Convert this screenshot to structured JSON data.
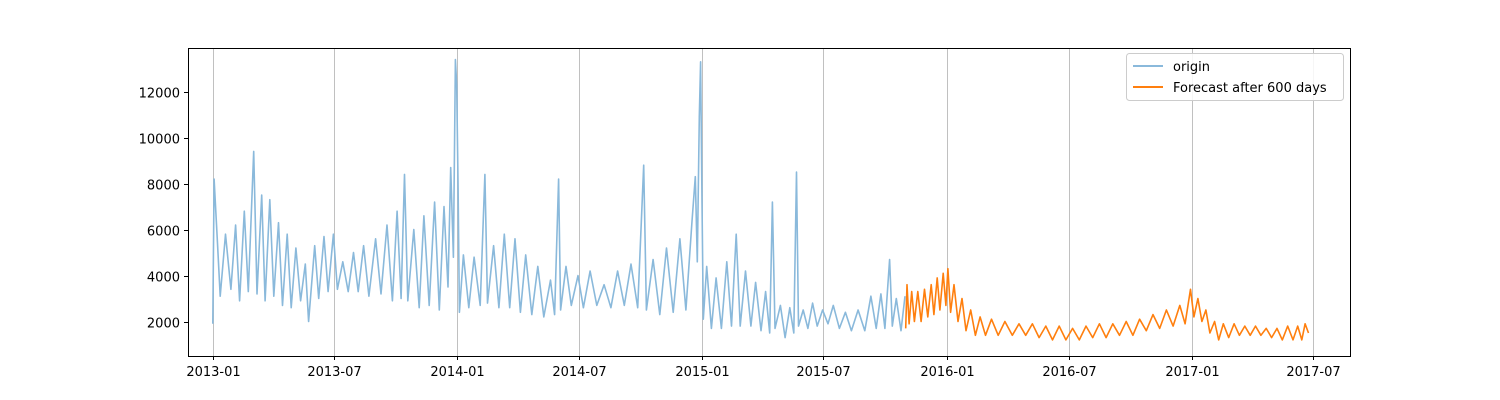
{
  "chart_data": {
    "type": "line",
    "title": "",
    "xlabel": "",
    "ylabel": "",
    "x_axis_type": "date",
    "xlim": [
      "2012-11-25",
      "2017-08-25"
    ],
    "ylim": [
      500,
      13900
    ],
    "x_ticks": [
      "2013-01",
      "2013-07",
      "2014-01",
      "2014-07",
      "2015-01",
      "2015-07",
      "2016-01",
      "2016-07",
      "2017-01",
      "2017-07"
    ],
    "y_ticks": [
      2000,
      4000,
      6000,
      8000,
      10000,
      12000
    ],
    "x_grid": true,
    "y_grid": false,
    "legend_position": "top-right",
    "colors": {
      "origin": "#8ab9db",
      "forecast": "#ff7f0e"
    },
    "series": [
      {
        "name": "origin",
        "points": [
          [
            "2013-01-01",
            1900
          ],
          [
            "2013-01-03",
            8200
          ],
          [
            "2013-01-08",
            5400
          ],
          [
            "2013-01-12",
            3100
          ],
          [
            "2013-01-20",
            5800
          ],
          [
            "2013-01-28",
            3400
          ],
          [
            "2013-02-04",
            6200
          ],
          [
            "2013-02-10",
            2900
          ],
          [
            "2013-02-17",
            6800
          ],
          [
            "2013-02-23",
            3300
          ],
          [
            "2013-03-03",
            9400
          ],
          [
            "2013-03-08",
            3200
          ],
          [
            "2013-03-15",
            7500
          ],
          [
            "2013-03-20",
            2900
          ],
          [
            "2013-03-27",
            7300
          ],
          [
            "2013-04-02",
            3100
          ],
          [
            "2013-04-09",
            6300
          ],
          [
            "2013-04-15",
            2700
          ],
          [
            "2013-04-22",
            5800
          ],
          [
            "2013-04-28",
            2600
          ],
          [
            "2013-05-05",
            5200
          ],
          [
            "2013-05-12",
            2900
          ],
          [
            "2013-05-19",
            4500
          ],
          [
            "2013-05-24",
            2000
          ],
          [
            "2013-06-02",
            5300
          ],
          [
            "2013-06-08",
            3000
          ],
          [
            "2013-06-16",
            5700
          ],
          [
            "2013-06-22",
            3300
          ],
          [
            "2013-06-30",
            5800
          ],
          [
            "2013-07-06",
            3400
          ],
          [
            "2013-07-14",
            4600
          ],
          [
            "2013-07-22",
            3300
          ],
          [
            "2013-07-30",
            5000
          ],
          [
            "2013-08-06",
            3300
          ],
          [
            "2013-08-14",
            5300
          ],
          [
            "2013-08-22",
            3100
          ],
          [
            "2013-09-01",
            5600
          ],
          [
            "2013-09-09",
            3200
          ],
          [
            "2013-09-18",
            6200
          ],
          [
            "2013-09-26",
            2900
          ],
          [
            "2013-10-03",
            6800
          ],
          [
            "2013-10-09",
            3000
          ],
          [
            "2013-10-14",
            8400
          ],
          [
            "2013-10-19",
            2900
          ],
          [
            "2013-10-28",
            6000
          ],
          [
            "2013-11-05",
            2600
          ],
          [
            "2013-11-12",
            6600
          ],
          [
            "2013-11-20",
            2700
          ],
          [
            "2013-11-28",
            7200
          ],
          [
            "2013-12-05",
            2500
          ],
          [
            "2013-12-12",
            7000
          ],
          [
            "2013-12-18",
            3500
          ],
          [
            "2013-12-22",
            8700
          ],
          [
            "2013-12-26",
            4800
          ],
          [
            "2013-12-29",
            13400
          ],
          [
            "2013-12-31",
            12300
          ],
          [
            "2014-01-02",
            7800
          ],
          [
            "2014-01-04",
            2400
          ],
          [
            "2014-01-10",
            4900
          ],
          [
            "2014-01-18",
            2600
          ],
          [
            "2014-01-26",
            4800
          ],
          [
            "2014-02-04",
            2700
          ],
          [
            "2014-02-11",
            8400
          ],
          [
            "2014-02-15",
            2800
          ],
          [
            "2014-02-24",
            5300
          ],
          [
            "2014-03-04",
            2600
          ],
          [
            "2014-03-12",
            5800
          ],
          [
            "2014-03-20",
            2600
          ],
          [
            "2014-03-28",
            5600
          ],
          [
            "2014-04-05",
            2400
          ],
          [
            "2014-04-13",
            4900
          ],
          [
            "2014-04-22",
            2300
          ],
          [
            "2014-05-01",
            4400
          ],
          [
            "2014-05-10",
            2200
          ],
          [
            "2014-05-20",
            3800
          ],
          [
            "2014-05-26",
            2300
          ],
          [
            "2014-06-01",
            8200
          ],
          [
            "2014-06-04",
            2500
          ],
          [
            "2014-06-12",
            4400
          ],
          [
            "2014-06-20",
            2700
          ],
          [
            "2014-06-30",
            4000
          ],
          [
            "2014-07-08",
            2600
          ],
          [
            "2014-07-18",
            4200
          ],
          [
            "2014-07-28",
            2700
          ],
          [
            "2014-08-08",
            3600
          ],
          [
            "2014-08-18",
            2600
          ],
          [
            "2014-08-28",
            4200
          ],
          [
            "2014-09-07",
            2700
          ],
          [
            "2014-09-17",
            4500
          ],
          [
            "2014-09-27",
            2600
          ],
          [
            "2014-10-06",
            8800
          ],
          [
            "2014-10-10",
            2500
          ],
          [
            "2014-10-20",
            4700
          ],
          [
            "2014-10-30",
            2300
          ],
          [
            "2014-11-09",
            5200
          ],
          [
            "2014-11-19",
            2400
          ],
          [
            "2014-11-29",
            5600
          ],
          [
            "2014-12-08",
            2500
          ],
          [
            "2014-12-17",
            6300
          ],
          [
            "2014-12-22",
            8300
          ],
          [
            "2014-12-25",
            4600
          ],
          [
            "2014-12-28",
            10900
          ],
          [
            "2014-12-30",
            13300
          ],
          [
            "2015-01-01",
            7200
          ],
          [
            "2015-01-03",
            2100
          ],
          [
            "2015-01-08",
            4400
          ],
          [
            "2015-01-15",
            1700
          ],
          [
            "2015-01-22",
            3900
          ],
          [
            "2015-01-30",
            1700
          ],
          [
            "2015-02-07",
            4600
          ],
          [
            "2015-02-14",
            1800
          ],
          [
            "2015-02-21",
            5800
          ],
          [
            "2015-02-27",
            1800
          ],
          [
            "2015-03-07",
            4200
          ],
          [
            "2015-03-15",
            1800
          ],
          [
            "2015-03-22",
            3700
          ],
          [
            "2015-03-30",
            1600
          ],
          [
            "2015-04-06",
            3300
          ],
          [
            "2015-04-12",
            1500
          ],
          [
            "2015-04-16",
            7200
          ],
          [
            "2015-04-20",
            1700
          ],
          [
            "2015-04-28",
            2700
          ],
          [
            "2015-05-05",
            1300
          ],
          [
            "2015-05-12",
            2600
          ],
          [
            "2015-05-18",
            1500
          ],
          [
            "2015-05-22",
            8500
          ],
          [
            "2015-05-25",
            1800
          ],
          [
            "2015-06-01",
            2500
          ],
          [
            "2015-06-08",
            1700
          ],
          [
            "2015-06-15",
            2800
          ],
          [
            "2015-06-22",
            1800
          ],
          [
            "2015-06-30",
            2500
          ],
          [
            "2015-07-08",
            1900
          ],
          [
            "2015-07-16",
            2700
          ],
          [
            "2015-07-25",
            1700
          ],
          [
            "2015-08-03",
            2400
          ],
          [
            "2015-08-12",
            1600
          ],
          [
            "2015-08-22",
            2500
          ],
          [
            "2015-09-01",
            1600
          ],
          [
            "2015-09-10",
            3100
          ],
          [
            "2015-09-18",
            1700
          ],
          [
            "2015-09-25",
            3200
          ],
          [
            "2015-10-01",
            1700
          ],
          [
            "2015-10-08",
            4700
          ],
          [
            "2015-10-12",
            1800
          ],
          [
            "2015-10-18",
            3000
          ],
          [
            "2015-10-25",
            1600
          ],
          [
            "2015-10-31",
            3100
          ]
        ]
      },
      {
        "name": "Forecast after 600 days",
        "points": [
          [
            "2015-11-01",
            1700
          ],
          [
            "2015-11-03",
            3600
          ],
          [
            "2015-11-06",
            1900
          ],
          [
            "2015-11-10",
            3300
          ],
          [
            "2015-11-14",
            2000
          ],
          [
            "2015-11-19",
            3300
          ],
          [
            "2015-11-24",
            2000
          ],
          [
            "2015-11-29",
            3400
          ],
          [
            "2015-12-04",
            2200
          ],
          [
            "2015-12-09",
            3600
          ],
          [
            "2015-12-13",
            2300
          ],
          [
            "2015-12-18",
            3900
          ],
          [
            "2015-12-22",
            2500
          ],
          [
            "2015-12-27",
            4100
          ],
          [
            "2015-12-31",
            2700
          ],
          [
            "2016-01-03",
            4300
          ],
          [
            "2016-01-07",
            2400
          ],
          [
            "2016-01-12",
            3600
          ],
          [
            "2016-01-18",
            2000
          ],
          [
            "2016-01-24",
            3000
          ],
          [
            "2016-01-30",
            1600
          ],
          [
            "2016-02-06",
            2500
          ],
          [
            "2016-02-13",
            1400
          ],
          [
            "2016-02-20",
            2200
          ],
          [
            "2016-02-28",
            1400
          ],
          [
            "2016-03-08",
            2100
          ],
          [
            "2016-03-18",
            1400
          ],
          [
            "2016-03-28",
            2000
          ],
          [
            "2016-04-08",
            1400
          ],
          [
            "2016-04-18",
            1900
          ],
          [
            "2016-04-28",
            1400
          ],
          [
            "2016-05-08",
            1900
          ],
          [
            "2016-05-18",
            1300
          ],
          [
            "2016-05-28",
            1800
          ],
          [
            "2016-06-07",
            1200
          ],
          [
            "2016-06-17",
            1800
          ],
          [
            "2016-06-27",
            1200
          ],
          [
            "2016-07-07",
            1700
          ],
          [
            "2016-07-17",
            1200
          ],
          [
            "2016-07-27",
            1800
          ],
          [
            "2016-08-06",
            1300
          ],
          [
            "2016-08-16",
            1900
          ],
          [
            "2016-08-26",
            1300
          ],
          [
            "2016-09-05",
            1900
          ],
          [
            "2016-09-15",
            1400
          ],
          [
            "2016-09-25",
            2000
          ],
          [
            "2016-10-05",
            1400
          ],
          [
            "2016-10-15",
            2100
          ],
          [
            "2016-10-25",
            1600
          ],
          [
            "2016-11-04",
            2300
          ],
          [
            "2016-11-14",
            1700
          ],
          [
            "2016-11-24",
            2500
          ],
          [
            "2016-12-04",
            1800
          ],
          [
            "2016-12-14",
            2700
          ],
          [
            "2016-12-22",
            1900
          ],
          [
            "2016-12-30",
            3400
          ],
          [
            "2017-01-04",
            2200
          ],
          [
            "2017-01-10",
            3000
          ],
          [
            "2017-01-16",
            2000
          ],
          [
            "2017-01-22",
            2500
          ],
          [
            "2017-01-28",
            1500
          ],
          [
            "2017-02-04",
            2000
          ],
          [
            "2017-02-10",
            1200
          ],
          [
            "2017-02-17",
            1900
          ],
          [
            "2017-02-25",
            1300
          ],
          [
            "2017-03-05",
            1900
          ],
          [
            "2017-03-13",
            1400
          ],
          [
            "2017-03-21",
            1800
          ],
          [
            "2017-03-29",
            1400
          ],
          [
            "2017-04-06",
            1800
          ],
          [
            "2017-04-14",
            1400
          ],
          [
            "2017-04-22",
            1700
          ],
          [
            "2017-04-30",
            1300
          ],
          [
            "2017-05-08",
            1700
          ],
          [
            "2017-05-16",
            1200
          ],
          [
            "2017-05-24",
            1800
          ],
          [
            "2017-06-01",
            1200
          ],
          [
            "2017-06-08",
            1800
          ],
          [
            "2017-06-14",
            1200
          ],
          [
            "2017-06-19",
            1900
          ],
          [
            "2017-06-24",
            1500
          ]
        ]
      }
    ]
  }
}
